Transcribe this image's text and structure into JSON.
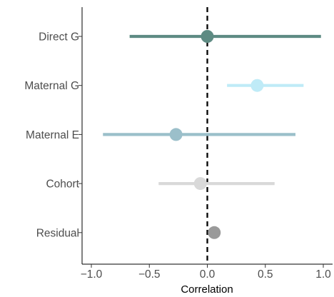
{
  "chart_data": {
    "type": "forest",
    "title": "",
    "xlabel": "Correlation",
    "ylabel": "",
    "xlim": [
      -1.08,
      1.08
    ],
    "x_ticks": [
      -1.0,
      -0.5,
      0.0,
      0.5,
      1.0
    ],
    "x_tick_labels": [
      "−1.0",
      "−0.5",
      "0.0",
      "0.5",
      "1.0"
    ],
    "reference_line": {
      "x": 0.0,
      "style": "dashed",
      "color": "#000000"
    },
    "grid": false,
    "legend": "none",
    "categories": [
      "Direct G",
      "Maternal G",
      "Maternal E",
      "Cohort",
      "Residual"
    ],
    "estimates": [
      0.0,
      0.43,
      -0.27,
      -0.06,
      0.06
    ],
    "lower": [
      -0.67,
      0.17,
      -0.9,
      -0.42,
      0.06
    ],
    "upper": [
      0.98,
      0.83,
      0.76,
      0.58,
      0.06
    ],
    "colors": [
      "#5e8b83",
      "#bfebf7",
      "#9bbfca",
      "#d9d9d9",
      "#9a9a9a"
    ]
  }
}
